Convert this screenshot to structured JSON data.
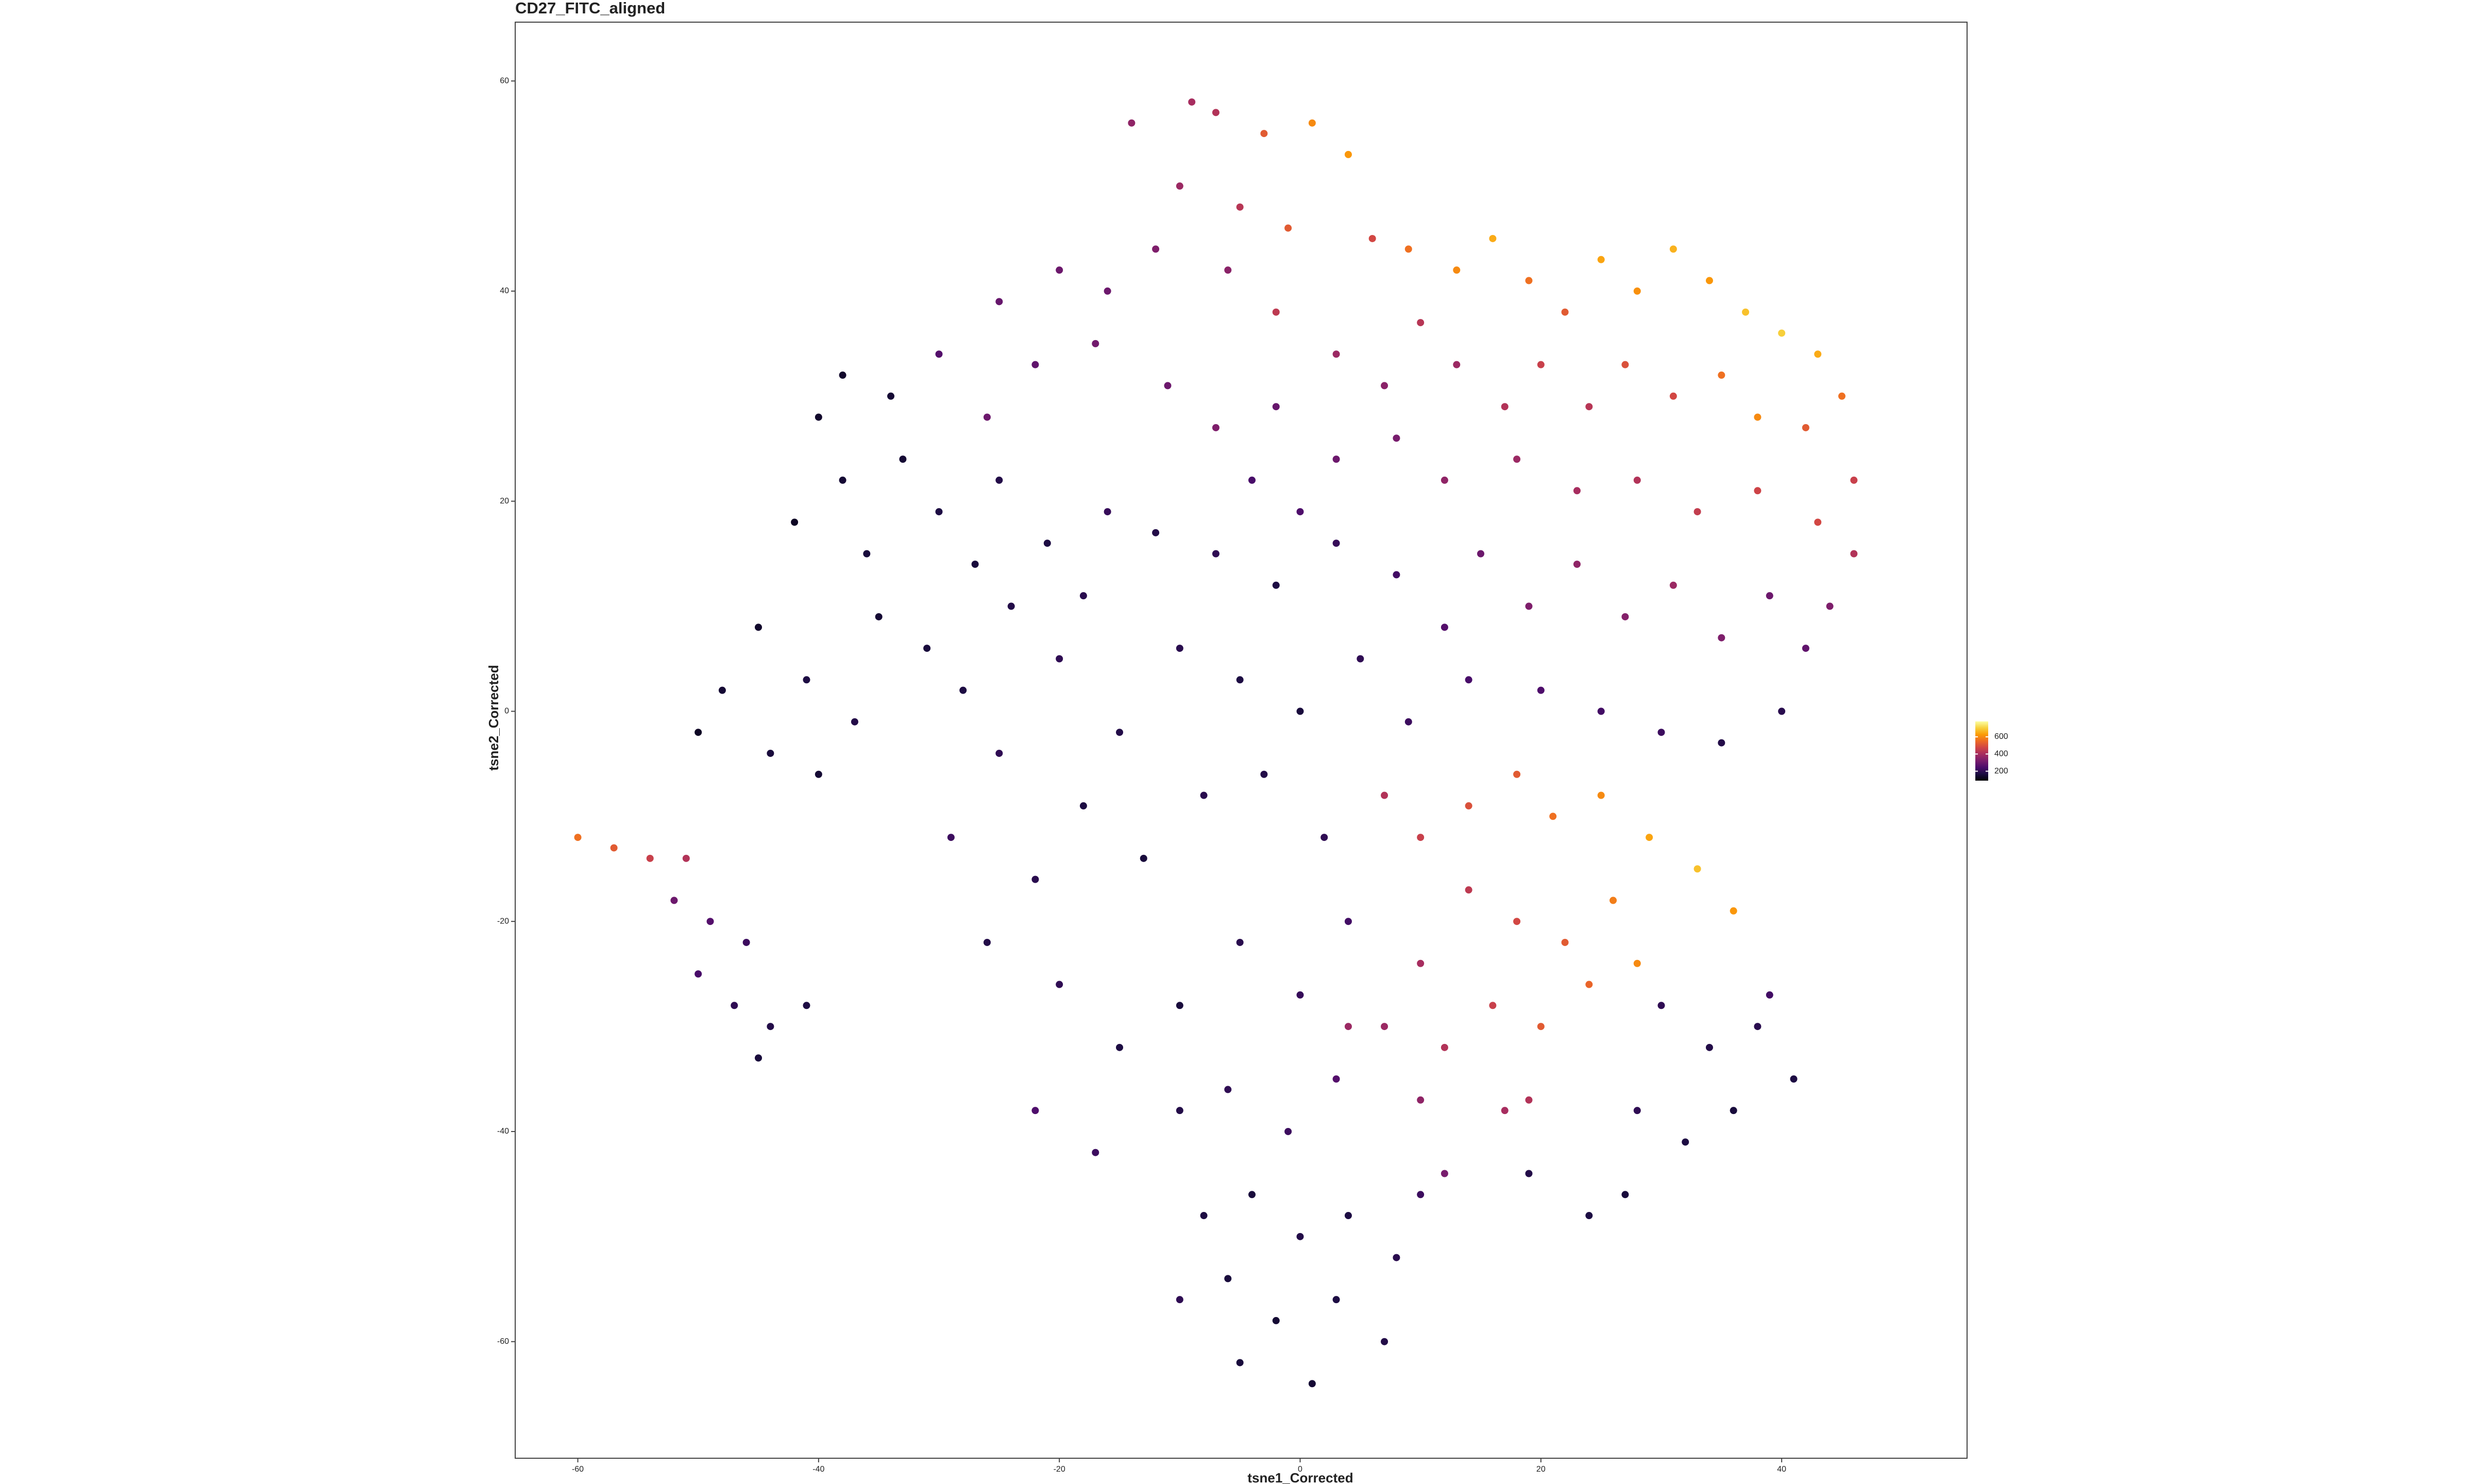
{
  "chart_data": {
    "type": "scatter",
    "title": "CD27_FITC_aligned",
    "xlabel": "tsne1_Corrected",
    "ylabel": "tsne2_Corrected",
    "colormap": "inferno",
    "grid": false,
    "xlim": [
      -65.2,
      55.4
    ],
    "xticks": [
      -60,
      -40,
      -20,
      0,
      20,
      40
    ],
    "ylim": [
      -71.1,
      65.6
    ],
    "yticks": [
      -60,
      -40,
      -20,
      0,
      20,
      40,
      60
    ],
    "colorbar": {
      "lim": [
        90,
        780
      ],
      "ticks": [
        200,
        400,
        600
      ]
    },
    "x": [
      -7,
      -3,
      1,
      4,
      -10,
      -5,
      -1,
      6,
      9,
      13,
      16,
      19,
      22,
      25,
      28,
      31,
      34,
      37,
      40,
      43,
      45,
      42,
      38,
      35,
      31,
      27,
      24,
      20,
      17,
      13,
      10,
      7,
      3,
      -2,
      -6,
      -12,
      -16,
      -20,
      -25,
      -22,
      -17,
      -11,
      -7,
      -2,
      3,
      8,
      12,
      18,
      23,
      28,
      33,
      38,
      43,
      46,
      -26,
      -30,
      0,
      -4,
      -40,
      -38,
      -42,
      -36,
      -33,
      -30,
      -27,
      -24,
      -21,
      -18,
      -35,
      -31,
      -38,
      -34,
      -25,
      -20,
      -28,
      -16,
      -45,
      -48,
      -50,
      -44,
      -40,
      -37,
      -41,
      -12,
      -7,
      -2,
      3,
      8,
      12,
      -10,
      -5,
      0,
      5,
      9,
      -15,
      -18,
      -13,
      -8,
      -3,
      2,
      -22,
      -26,
      -20,
      -15,
      -10,
      -5,
      0,
      4,
      -6,
      -1,
      3,
      -29,
      -25,
      -10,
      -22,
      -17,
      15,
      19,
      23,
      27,
      31,
      35,
      39,
      42,
      20,
      25,
      30,
      35,
      14,
      40,
      44,
      46,
      7,
      10,
      14,
      18,
      21,
      25,
      29,
      33,
      36,
      26,
      22,
      18,
      14,
      10,
      7,
      12,
      16,
      20,
      24,
      28,
      10,
      19,
      4,
      -60,
      -57,
      -54,
      -51,
      -52,
      -49,
      -46,
      -50,
      -47,
      -44,
      -41,
      -45,
      -8,
      -4,
      0,
      4,
      8,
      -6,
      -2,
      3,
      7,
      -5,
      1,
      -10,
      10,
      30,
      34,
      38,
      41,
      36,
      32,
      28,
      39,
      24,
      27,
      19,
      17,
      12,
      -14,
      -9
    ],
    "y": [
      57,
      55,
      56,
      53,
      50,
      48,
      46,
      45,
      44,
      42,
      45,
      41,
      38,
      43,
      40,
      44,
      41,
      38,
      36,
      34,
      30,
      27,
      28,
      32,
      30,
      33,
      29,
      33,
      29,
      33,
      37,
      31,
      34,
      38,
      42,
      44,
      40,
      42,
      39,
      33,
      35,
      31,
      27,
      29,
      24,
      26,
      22,
      24,
      21,
      22,
      19,
      21,
      18,
      15,
      28,
      34,
      19,
      22,
      28,
      22,
      18,
      15,
      24,
      19,
      14,
      10,
      16,
      11,
      9,
      6,
      32,
      30,
      22,
      5,
      2,
      19,
      8,
      2,
      -2,
      -4,
      -6,
      -1,
      3,
      17,
      15,
      12,
      16,
      13,
      8,
      6,
      3,
      0,
      5,
      -1,
      -2,
      -9,
      -14,
      -8,
      -6,
      -12,
      -16,
      -22,
      -26,
      -32,
      -28,
      -22,
      -27,
      -20,
      -36,
      -40,
      -35,
      -12,
      -4,
      -38,
      -38,
      -42,
      15,
      10,
      14,
      9,
      12,
      7,
      11,
      6,
      2,
      0,
      -2,
      -3,
      3,
      0,
      10,
      22,
      -8,
      -12,
      -9,
      -6,
      -10,
      -8,
      -12,
      -15,
      -19,
      -18,
      -22,
      -20,
      -17,
      -24,
      -30,
      -32,
      -28,
      -30,
      -26,
      -24,
      -37,
      -37,
      -30,
      -12,
      -13,
      -14,
      -14,
      -18,
      -20,
      -22,
      -25,
      -28,
      -30,
      -28,
      -33,
      -48,
      -46,
      -50,
      -48,
      -52,
      -54,
      -58,
      -56,
      -60,
      -62,
      -64,
      -56,
      -46,
      -28,
      -32,
      -30,
      -35,
      -38,
      -41,
      -38,
      -27,
      -48,
      -46,
      -44,
      -38,
      -44,
      56,
      58
    ],
    "values": [
      420,
      520,
      600,
      620,
      380,
      430,
      520,
      480,
      560,
      600,
      650,
      560,
      520,
      640,
      610,
      660,
      620,
      680,
      700,
      650,
      560,
      520,
      600,
      560,
      480,
      500,
      430,
      460,
      420,
      380,
      430,
      350,
      380,
      440,
      350,
      330,
      300,
      300,
      290,
      280,
      310,
      300,
      330,
      290,
      300,
      320,
      360,
      380,
      400,
      420,
      450,
      470,
      480,
      420,
      300,
      260,
      250,
      240,
      140,
      150,
      130,
      160,
      150,
      170,
      160,
      180,
      170,
      190,
      150,
      160,
      140,
      150,
      180,
      200,
      170,
      210,
      140,
      150,
      130,
      160,
      150,
      180,
      170,
      180,
      200,
      170,
      210,
      230,
      260,
      190,
      170,
      160,
      200,
      220,
      180,
      170,
      160,
      190,
      180,
      200,
      190,
      180,
      200,
      170,
      160,
      190,
      210,
      230,
      200,
      220,
      260,
      220,
      200,
      180,
      250,
      220,
      300,
      330,
      360,
      340,
      380,
      330,
      300,
      280,
      250,
      230,
      220,
      180,
      240,
      190,
      330,
      460,
      420,
      460,
      500,
      520,
      560,
      600,
      640,
      680,
      620,
      580,
      520,
      480,
      440,
      400,
      380,
      420,
      460,
      520,
      540,
      600,
      360,
      420,
      380,
      560,
      520,
      460,
      420,
      300,
      260,
      220,
      240,
      200,
      180,
      170,
      160,
      170,
      160,
      180,
      170,
      190,
      160,
      150,
      170,
      180,
      160,
      150,
      200,
      220,
      200,
      180,
      190,
      170,
      160,
      170,
      200,
      230,
      170,
      160,
      180,
      400,
      320,
      360,
      400
    ]
  }
}
